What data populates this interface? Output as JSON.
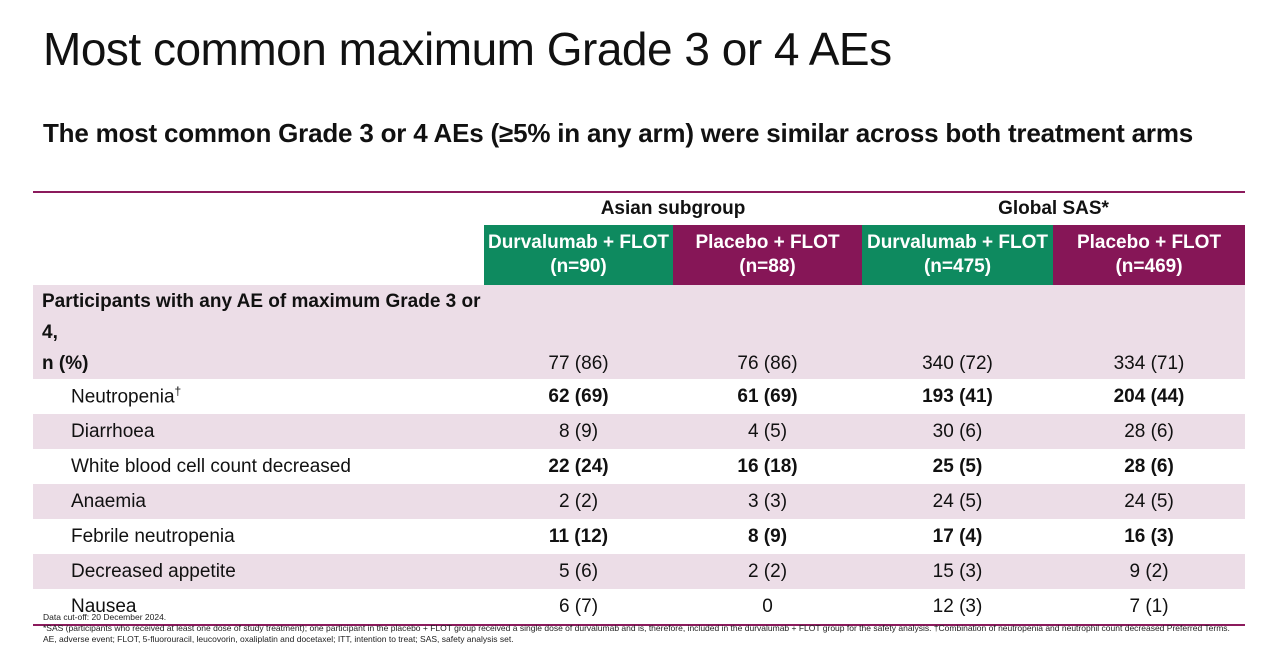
{
  "title": "Most common maximum Grade 3 or 4 AEs",
  "subtitle": "The most common Grade 3 or 4 AEs (≥5% in any arm) were similar across both treatment arms",
  "table": {
    "groups": {
      "asian": "Asian subgroup",
      "global": "Global SAS*"
    },
    "arms": [
      {
        "name": "Durvalumab + FLOT",
        "n": "(n=90)"
      },
      {
        "name": "Placebo + FLOT",
        "n": "(n=88)"
      },
      {
        "name": "Durvalumab + FLOT",
        "n": "(n=475)"
      },
      {
        "name": "Placebo + FLOT",
        "n": "(n=469)"
      }
    ],
    "first_row": {
      "label_line1": "Participants with any AE of maximum Grade 3 or 4,",
      "label_line2": "n (%)",
      "values": [
        "77 (86)",
        "76 (86)",
        "340 (72)",
        "334 (71)"
      ]
    },
    "rows": [
      {
        "label": "Neutropenia",
        "sup": "†",
        "values": [
          "62 (69)",
          "61 (69)",
          "193 (41)",
          "204 (44)"
        ]
      },
      {
        "label": "Diarrhoea",
        "values": [
          "8 (9)",
          "4 (5)",
          "30 (6)",
          "28 (6)"
        ]
      },
      {
        "label": "White blood cell count decreased",
        "values": [
          "22 (24)",
          "16 (18)",
          "25 (5)",
          "28 (6)"
        ]
      },
      {
        "label": "Anaemia",
        "values": [
          "2 (2)",
          "3 (3)",
          "24 (5)",
          "24 (5)"
        ]
      },
      {
        "label": "Febrile neutropenia",
        "values": [
          "11 (12)",
          "8 (9)",
          "17 (4)",
          "16 (3)"
        ]
      },
      {
        "label": "Decreased appetite",
        "values": [
          "5 (6)",
          "2 (2)",
          "15 (3)",
          "9 (2)"
        ]
      },
      {
        "label": "Nausea",
        "values": [
          "6 (7)",
          "0",
          "12 (3)",
          "7 (1)"
        ]
      }
    ]
  },
  "colors": {
    "durvalumab": "#0e8a5f",
    "placebo": "#861657",
    "rule": "#8b1a5c",
    "shade": "#ecdde7"
  },
  "footnotes": {
    "line1": "Data cut-off: 20 December 2024.",
    "line2": "*SAS (participants who received at least one dose of study treatment); one participant in the placebo + FLOT group received a single dose of durvalumab and is, therefore, included in the durvalumab + FLOT group for the safety analysis. †Combination of neutropenia and neutrophil count decreased Preferred Terms.",
    "line3": "AE, adverse event; FLOT, 5-fluorouracil, leucovorin, oxaliplatin and docetaxel; ITT, intention to treat; SAS, safety analysis set."
  }
}
